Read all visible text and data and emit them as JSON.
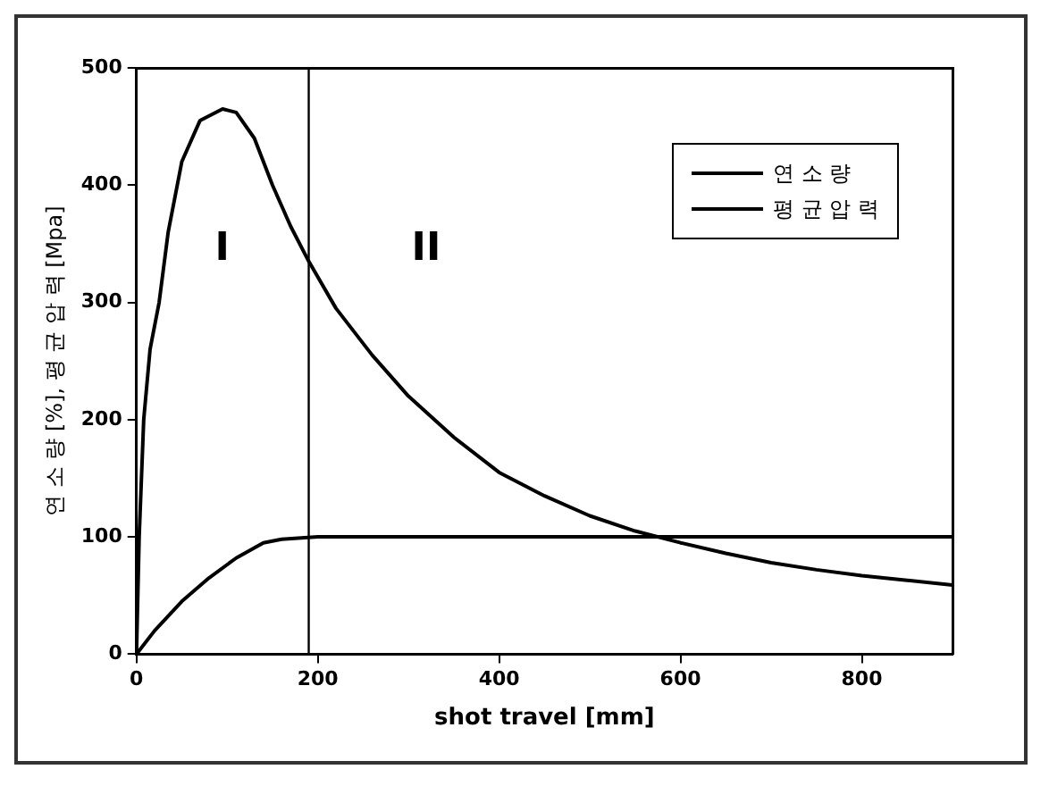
{
  "chart_data": {
    "type": "line",
    "xlabel": "shot travel [mm]",
    "ylabel": "연 소 량 [%], 평 균 압 력 [Mpa]",
    "xlim": [
      0,
      900
    ],
    "xticks": [
      0,
      200,
      400,
      600,
      800
    ],
    "ylim": [
      0,
      500
    ],
    "yticks": [
      0,
      100,
      200,
      300,
      400,
      500
    ],
    "grid": false,
    "legend": "top right",
    "marker": "none",
    "line_style": "solid",
    "series": [
      {
        "name": "연 소 량",
        "color": "#000000",
        "x": [
          0,
          20,
          50,
          80,
          110,
          140,
          160,
          200,
          900
        ],
        "values": [
          0,
          20,
          45,
          65,
          82,
          95,
          98,
          100,
          100
        ]
      },
      {
        "name": "평 균 압 력",
        "color": "#000000",
        "x": [
          0,
          3,
          8,
          15,
          25,
          35,
          50,
          70,
          95,
          110,
          130,
          150,
          170,
          190,
          220,
          260,
          300,
          350,
          400,
          450,
          500,
          550,
          600,
          650,
          700,
          750,
          800,
          850,
          900
        ],
        "values": [
          0,
          100,
          200,
          260,
          300,
          360,
          420,
          455,
          465,
          462,
          440,
          400,
          365,
          335,
          295,
          255,
          220,
          185,
          155,
          135,
          118,
          105,
          95,
          86,
          78,
          72,
          67,
          63,
          59
        ]
      }
    ],
    "ref_lines": [
      {
        "axis": "x",
        "value": 190,
        "color": "#000000"
      }
    ],
    "annotations": [
      "I",
      "II"
    ]
  }
}
